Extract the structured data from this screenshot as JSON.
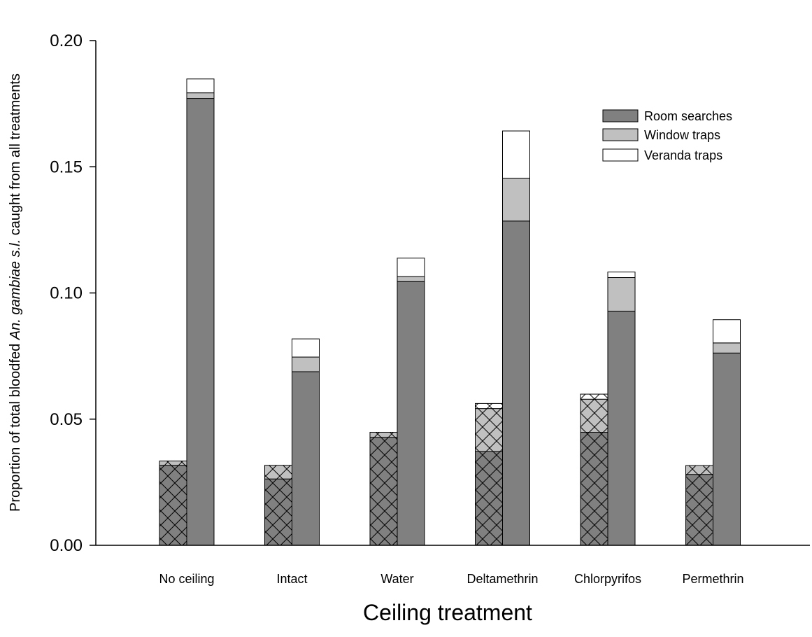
{
  "chart_data": {
    "type": "bar",
    "stacked": true,
    "title": "",
    "xlabel": "Ceiling treatment",
    "ylabel": {
      "prefix": "Proportion of total bloodfed ",
      "italic": "An. gambiae s.l.",
      "suffix": " caught from all treatments"
    },
    "ylim": [
      0,
      0.2
    ],
    "yticks": [
      "0.00",
      "0.05",
      "0.10",
      "0.15",
      "0.20"
    ],
    "categories": [
      "No ceiling",
      "Intact",
      "Water",
      "Deltamethrin",
      "Chlorpyrifos",
      "Permethrin"
    ],
    "legend": {
      "position": "top-right",
      "entries": [
        {
          "name": "Room searches",
          "color": "#808080"
        },
        {
          "name": "Window traps",
          "color": "#c0c0c0"
        },
        {
          "name": "Veranda traps",
          "color": "#ffffff"
        }
      ]
    },
    "groups": [
      {
        "bar": "hatched",
        "series": [
          {
            "name": "Room searches",
            "values": [
              0.0317,
              0.0263,
              0.0428,
              0.0372,
              0.0448,
              0.0281
            ]
          },
          {
            "name": "Window traps",
            "values": [
              0.0017,
              0.0054,
              0.002,
              0.017,
              0.0131,
              0.0035
            ]
          },
          {
            "name": "Veranda traps",
            "values": [
              0.0,
              0.0,
              0.0,
              0.002,
              0.002,
              0.0
            ]
          }
        ]
      },
      {
        "bar": "solid",
        "series": [
          {
            "name": "Room searches",
            "values": [
              0.1771,
              0.0688,
              0.1045,
              0.1285,
              0.0928,
              0.0762
            ]
          },
          {
            "name": "Window traps",
            "values": [
              0.0022,
              0.0058,
              0.002,
              0.017,
              0.0133,
              0.004
            ]
          },
          {
            "name": "Veranda traps",
            "values": [
              0.0055,
              0.0072,
              0.0073,
              0.0187,
              0.0022,
              0.0092
            ]
          }
        ]
      }
    ]
  }
}
